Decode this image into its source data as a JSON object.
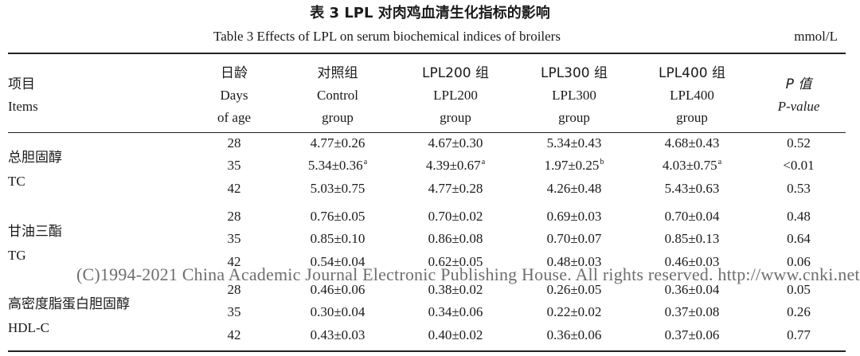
{
  "title_cn": "表 3   LPL 对肉鸡血清生化指标的影响",
  "title_en": "Table 3    Effects of LPL on serum biochemical indices of broilers",
  "unit": "mmol/L",
  "headers": {
    "items": [
      "项目",
      "Items"
    ],
    "days": [
      "日龄",
      "Days",
      "of age"
    ],
    "control": [
      "对照组",
      "Control",
      "group"
    ],
    "lpl200": [
      "LPL200 组",
      "LPL200",
      "group"
    ],
    "lpl300": [
      "LPL300 组",
      "LPL300",
      "group"
    ],
    "lpl400": [
      "LPL400 组",
      "LPL400",
      "group"
    ],
    "pvalue": [
      "P 值",
      "P-value"
    ]
  },
  "groups": [
    {
      "name_cn": "总胆固醇",
      "name_en": "TC",
      "rows": [
        {
          "day": "28",
          "control": "4.77±0.26",
          "control_sup": "",
          "lpl200": "4.67±0.30",
          "lpl200_sup": "",
          "lpl300": "5.34±0.43",
          "lpl300_sup": "",
          "lpl400": "4.68±0.43",
          "lpl400_sup": "",
          "p": "0.52"
        },
        {
          "day": "35",
          "control": "5.34±0.36",
          "control_sup": "a",
          "lpl200": "4.39±0.67",
          "lpl200_sup": "a",
          "lpl300": "1.97±0.25",
          "lpl300_sup": "b",
          "lpl400": "4.03±0.75",
          "lpl400_sup": "a",
          "p": "<0.01"
        },
        {
          "day": "42",
          "control": "5.03±0.75",
          "control_sup": "",
          "lpl200": "4.77±0.28",
          "lpl200_sup": "",
          "lpl300": "4.26±0.48",
          "lpl300_sup": "",
          "lpl400": "5.43±0.63",
          "lpl400_sup": "",
          "p": "0.53"
        }
      ]
    },
    {
      "name_cn": "甘油三酯",
      "name_en": "TG",
      "rows": [
        {
          "day": "28",
          "control": "0.76±0.05",
          "control_sup": "",
          "lpl200": "0.70±0.02",
          "lpl200_sup": "",
          "lpl300": "0.69±0.03",
          "lpl300_sup": "",
          "lpl400": "0.70±0.04",
          "lpl400_sup": "",
          "p": "0.48"
        },
        {
          "day": "35",
          "control": "0.85±0.10",
          "control_sup": "",
          "lpl200": "0.86±0.08",
          "lpl200_sup": "",
          "lpl300": "0.70±0.07",
          "lpl300_sup": "",
          "lpl400": "0.85±0.13",
          "lpl400_sup": "",
          "p": "0.64"
        },
        {
          "day": "42",
          "control": "0.54±0.04",
          "control_sup": "",
          "lpl200": "0.62±0.05",
          "lpl200_sup": "",
          "lpl300": "0.48±0.03",
          "lpl300_sup": "",
          "lpl400": "0.46±0.03",
          "lpl400_sup": "",
          "p": "0.06"
        }
      ]
    },
    {
      "name_cn": "高密度脂蛋白胆固醇",
      "name_en": "HDL-C",
      "rows": [
        {
          "day": "28",
          "control": "0.46±0.06",
          "control_sup": "",
          "lpl200": "0.38±0.02",
          "lpl200_sup": "",
          "lpl300": "0.26±0.05",
          "lpl300_sup": "",
          "lpl400": "0.36±0.04",
          "lpl400_sup": "",
          "p": "0.05"
        },
        {
          "day": "35",
          "control": "0.30±0.04",
          "control_sup": "",
          "lpl200": "0.34±0.06",
          "lpl200_sup": "",
          "lpl300": "0.22±0.02",
          "lpl300_sup": "",
          "lpl400": "0.37±0.08",
          "lpl400_sup": "",
          "p": "0.26"
        },
        {
          "day": "42",
          "control": "0.43±0.03",
          "control_sup": "",
          "lpl200": "0.40±0.02",
          "lpl200_sup": "",
          "lpl300": "0.36±0.06",
          "lpl300_sup": "",
          "lpl400": "0.37±0.06",
          "lpl400_sup": "",
          "p": "0.77"
        }
      ]
    }
  ],
  "watermark": "(C)1994-2021 China Academic Journal Electronic Publishing House. All rights reserved.    http://www.cnki.net"
}
